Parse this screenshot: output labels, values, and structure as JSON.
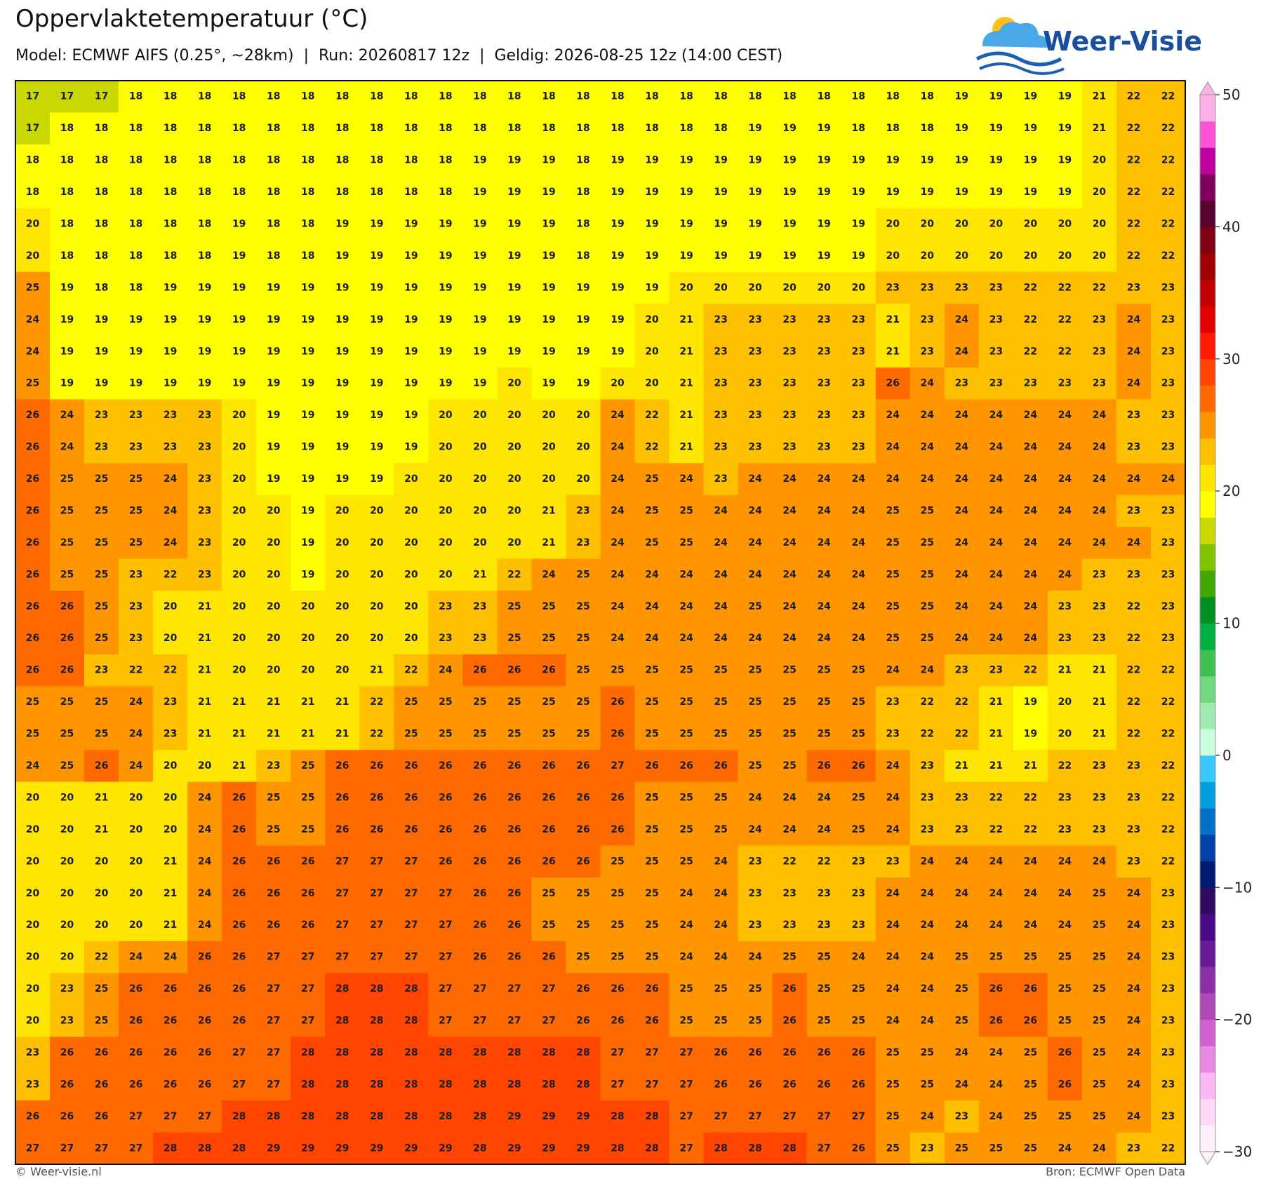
{
  "chart_data": {
    "type": "heatmap",
    "title": "Oppervlaktetemperatuur (°C)",
    "subtitle": "Model: ECMWF AIFS (0.25°, ~28km)  |  Run: 20260817 12z  |  Geldig: 2026-08-25 12z (14:00 CEST)",
    "logo": "Weer-Visie",
    "credit_left": "© Weer-visie.nl",
    "credit_right": "Bron: ECMWF Open Data",
    "values": [
      [
        17,
        17,
        17,
        18,
        18,
        18,
        18,
        18,
        18,
        18,
        18,
        18,
        18,
        18,
        18,
        18,
        18,
        18,
        18,
        18,
        18,
        18,
        18,
        18,
        18,
        18,
        18,
        19,
        19,
        19,
        19,
        21,
        22,
        22
      ],
      [
        17,
        18,
        18,
        18,
        18,
        18,
        18,
        18,
        18,
        18,
        18,
        18,
        18,
        18,
        18,
        18,
        18,
        18,
        18,
        18,
        18,
        19,
        19,
        19,
        18,
        18,
        18,
        19,
        19,
        19,
        19,
        21,
        22,
        22
      ],
      [
        18,
        18,
        18,
        18,
        18,
        18,
        18,
        18,
        18,
        18,
        18,
        18,
        18,
        19,
        19,
        19,
        18,
        19,
        19,
        19,
        19,
        19,
        19,
        19,
        19,
        19,
        19,
        19,
        19,
        19,
        19,
        20,
        22,
        22
      ],
      [
        18,
        18,
        18,
        18,
        18,
        18,
        18,
        18,
        18,
        18,
        18,
        18,
        18,
        19,
        19,
        19,
        18,
        19,
        19,
        19,
        19,
        19,
        19,
        19,
        19,
        19,
        19,
        19,
        19,
        19,
        19,
        20,
        22,
        22
      ],
      [
        20,
        18,
        18,
        18,
        18,
        18,
        19,
        18,
        18,
        19,
        19,
        19,
        19,
        19,
        19,
        19,
        18,
        19,
        19,
        19,
        19,
        19,
        19,
        19,
        19,
        20,
        20,
        20,
        20,
        20,
        20,
        20,
        22,
        22
      ],
      [
        20,
        18,
        18,
        18,
        18,
        18,
        19,
        18,
        18,
        19,
        19,
        19,
        19,
        19,
        19,
        19,
        18,
        19,
        19,
        19,
        19,
        19,
        19,
        19,
        19,
        20,
        20,
        20,
        20,
        20,
        20,
        20,
        22,
        22
      ],
      [
        25,
        19,
        18,
        18,
        19,
        19,
        19,
        19,
        19,
        19,
        19,
        19,
        19,
        19,
        19,
        19,
        19,
        19,
        19,
        20,
        20,
        20,
        20,
        20,
        20,
        23,
        23,
        23,
        23,
        22,
        22,
        22,
        23,
        23
      ],
      [
        24,
        19,
        19,
        19,
        19,
        19,
        19,
        19,
        19,
        19,
        19,
        19,
        19,
        19,
        19,
        19,
        19,
        19,
        20,
        21,
        23,
        23,
        23,
        23,
        23,
        21,
        23,
        24,
        23,
        22,
        22,
        23,
        24,
        23
      ],
      [
        24,
        19,
        19,
        19,
        19,
        19,
        19,
        19,
        19,
        19,
        19,
        19,
        19,
        19,
        19,
        19,
        19,
        19,
        20,
        21,
        23,
        23,
        23,
        23,
        23,
        21,
        23,
        24,
        23,
        22,
        22,
        23,
        24,
        23
      ],
      [
        25,
        19,
        19,
        19,
        19,
        19,
        19,
        19,
        19,
        19,
        19,
        19,
        19,
        19,
        20,
        19,
        19,
        20,
        20,
        21,
        23,
        23,
        23,
        23,
        23,
        26,
        24,
        23,
        23,
        23,
        23,
        23,
        24,
        23
      ],
      [
        26,
        24,
        23,
        23,
        23,
        23,
        20,
        19,
        19,
        19,
        19,
        19,
        20,
        20,
        20,
        20,
        20,
        24,
        22,
        21,
        23,
        23,
        23,
        23,
        23,
        24,
        24,
        24,
        24,
        24,
        24,
        24,
        23,
        23
      ],
      [
        26,
        24,
        23,
        23,
        23,
        23,
        20,
        19,
        19,
        19,
        19,
        19,
        20,
        20,
        20,
        20,
        20,
        24,
        22,
        21,
        23,
        23,
        23,
        23,
        23,
        24,
        24,
        24,
        24,
        24,
        24,
        24,
        23,
        23
      ],
      [
        26,
        25,
        25,
        25,
        24,
        23,
        20,
        19,
        19,
        19,
        19,
        20,
        20,
        20,
        20,
        20,
        20,
        24,
        25,
        24,
        23,
        24,
        24,
        24,
        24,
        24,
        24,
        24,
        24,
        24,
        24,
        24,
        24,
        24
      ],
      [
        26,
        25,
        25,
        25,
        24,
        23,
        20,
        20,
        19,
        20,
        20,
        20,
        20,
        20,
        20,
        21,
        23,
        24,
        25,
        25,
        24,
        24,
        24,
        24,
        24,
        25,
        25,
        24,
        24,
        24,
        24,
        24,
        23,
        23
      ],
      [
        26,
        25,
        25,
        25,
        24,
        23,
        20,
        20,
        19,
        20,
        20,
        20,
        20,
        20,
        20,
        21,
        23,
        24,
        25,
        25,
        24,
        24,
        24,
        24,
        24,
        25,
        25,
        24,
        24,
        24,
        24,
        24,
        24,
        23
      ],
      [
        26,
        25,
        25,
        23,
        22,
        23,
        20,
        20,
        19,
        20,
        20,
        20,
        20,
        21,
        22,
        24,
        25,
        24,
        24,
        24,
        24,
        24,
        24,
        24,
        24,
        25,
        25,
        24,
        24,
        24,
        24,
        23,
        23,
        23
      ],
      [
        26,
        26,
        25,
        23,
        20,
        21,
        20,
        20,
        20,
        20,
        20,
        20,
        23,
        23,
        25,
        25,
        25,
        24,
        24,
        24,
        24,
        25,
        24,
        24,
        24,
        25,
        25,
        24,
        24,
        24,
        23,
        23,
        22,
        23
      ],
      [
        26,
        26,
        25,
        23,
        20,
        21,
        20,
        20,
        20,
        20,
        20,
        20,
        23,
        23,
        25,
        25,
        25,
        24,
        24,
        24,
        24,
        24,
        24,
        24,
        24,
        25,
        25,
        24,
        24,
        24,
        23,
        23,
        22,
        23
      ],
      [
        26,
        26,
        23,
        22,
        22,
        21,
        20,
        20,
        20,
        20,
        21,
        22,
        24,
        26,
        26,
        26,
        25,
        25,
        25,
        25,
        25,
        25,
        25,
        25,
        25,
        24,
        24,
        23,
        23,
        22,
        21,
        21,
        22,
        22
      ],
      [
        25,
        25,
        25,
        24,
        23,
        21,
        21,
        21,
        21,
        21,
        22,
        25,
        25,
        25,
        25,
        25,
        25,
        26,
        25,
        25,
        25,
        25,
        25,
        25,
        25,
        23,
        22,
        22,
        21,
        19,
        20,
        21,
        22,
        22
      ],
      [
        25,
        25,
        25,
        24,
        23,
        21,
        21,
        21,
        21,
        21,
        22,
        25,
        25,
        25,
        25,
        25,
        25,
        26,
        25,
        25,
        25,
        25,
        25,
        25,
        25,
        23,
        22,
        22,
        21,
        19,
        20,
        21,
        22,
        22
      ],
      [
        24,
        25,
        26,
        24,
        20,
        20,
        21,
        23,
        25,
        26,
        26,
        26,
        26,
        26,
        26,
        26,
        26,
        27,
        26,
        26,
        26,
        25,
        25,
        26,
        26,
        24,
        23,
        21,
        21,
        21,
        22,
        23,
        23,
        22
      ],
      [
        20,
        20,
        21,
        20,
        20,
        24,
        26,
        25,
        25,
        26,
        26,
        26,
        26,
        26,
        26,
        26,
        26,
        26,
        25,
        25,
        25,
        24,
        24,
        24,
        25,
        24,
        23,
        23,
        22,
        22,
        23,
        23,
        23,
        22
      ],
      [
        20,
        20,
        21,
        20,
        20,
        24,
        26,
        25,
        25,
        26,
        26,
        26,
        26,
        26,
        26,
        26,
        26,
        26,
        25,
        25,
        25,
        24,
        24,
        24,
        25,
        24,
        23,
        23,
        22,
        22,
        23,
        23,
        23,
        22
      ],
      [
        20,
        20,
        20,
        20,
        21,
        24,
        26,
        26,
        26,
        27,
        27,
        27,
        26,
        26,
        26,
        26,
        26,
        25,
        25,
        25,
        24,
        23,
        22,
        22,
        23,
        23,
        24,
        24,
        24,
        24,
        24,
        24,
        23,
        22
      ],
      [
        20,
        20,
        20,
        20,
        21,
        24,
        26,
        26,
        26,
        27,
        27,
        27,
        27,
        26,
        26,
        25,
        25,
        25,
        25,
        24,
        24,
        23,
        23,
        23,
        23,
        24,
        24,
        24,
        24,
        24,
        24,
        25,
        24,
        23
      ],
      [
        20,
        20,
        20,
        20,
        21,
        24,
        26,
        26,
        26,
        27,
        27,
        27,
        27,
        26,
        26,
        25,
        25,
        25,
        25,
        24,
        24,
        23,
        23,
        23,
        23,
        24,
        24,
        24,
        24,
        24,
        24,
        25,
        24,
        23
      ],
      [
        20,
        20,
        22,
        24,
        24,
        26,
        26,
        27,
        27,
        27,
        27,
        27,
        27,
        26,
        26,
        26,
        25,
        25,
        25,
        24,
        24,
        24,
        25,
        25,
        24,
        24,
        24,
        25,
        25,
        25,
        25,
        25,
        24,
        23
      ],
      [
        20,
        23,
        25,
        26,
        26,
        26,
        26,
        27,
        27,
        28,
        28,
        28,
        27,
        27,
        27,
        27,
        26,
        26,
        26,
        25,
        25,
        25,
        26,
        25,
        25,
        24,
        24,
        25,
        26,
        26,
        25,
        25,
        24,
        23
      ],
      [
        20,
        23,
        25,
        26,
        26,
        26,
        26,
        27,
        27,
        28,
        28,
        28,
        27,
        27,
        27,
        27,
        26,
        26,
        26,
        25,
        25,
        25,
        26,
        25,
        25,
        24,
        24,
        25,
        26,
        26,
        25,
        25,
        24,
        23
      ],
      [
        23,
        26,
        26,
        26,
        26,
        26,
        27,
        27,
        28,
        28,
        28,
        28,
        28,
        28,
        28,
        28,
        28,
        27,
        27,
        27,
        26,
        26,
        26,
        26,
        26,
        25,
        25,
        24,
        24,
        25,
        26,
        25,
        24,
        23
      ],
      [
        23,
        26,
        26,
        26,
        26,
        26,
        27,
        27,
        28,
        28,
        28,
        28,
        28,
        28,
        28,
        28,
        28,
        27,
        27,
        27,
        26,
        26,
        26,
        26,
        26,
        25,
        25,
        24,
        24,
        25,
        26,
        25,
        24,
        23
      ],
      [
        26,
        26,
        26,
        27,
        27,
        27,
        28,
        28,
        28,
        28,
        28,
        28,
        28,
        28,
        29,
        29,
        29,
        28,
        28,
        27,
        27,
        27,
        27,
        27,
        27,
        25,
        24,
        23,
        24,
        25,
        25,
        25,
        24,
        23
      ],
      [
        27,
        27,
        27,
        27,
        28,
        28,
        28,
        29,
        29,
        29,
        29,
        29,
        29,
        28,
        29,
        29,
        29,
        28,
        28,
        27,
        28,
        28,
        28,
        27,
        26,
        25,
        23,
        25,
        25,
        25,
        24,
        24,
        23,
        22
      ]
    ],
    "colorbar": {
      "lim": [
        -30,
        50
      ],
      "ticks": [
        {
          "value": -30,
          "label": "−30"
        },
        {
          "value": -20,
          "label": "−20"
        },
        {
          "value": -10,
          "label": "−10"
        },
        0,
        10,
        20,
        30,
        40,
        50
      ],
      "colors": [
        "#fff0fc",
        "#ffd8f8",
        "#fcb8f2",
        "#e888e4",
        "#d060d0",
        "#b048b8",
        "#8c30a8",
        "#6a1a98",
        "#4a0a88",
        "#300a60",
        "#001a6e",
        "#0040a8",
        "#0070c8",
        "#00a0e0",
        "#35c8f8",
        "#ccffe0",
        "#a0ecb0",
        "#70d880",
        "#40c050",
        "#00b040",
        "#009020",
        "#40a800",
        "#80c400",
        "#c8d800",
        "#ffff00",
        "#ffe600",
        "#ffc000",
        "#ff9600",
        "#ff6a00",
        "#ff4500",
        "#ff1a00",
        "#e00000",
        "#c00000",
        "#a00000",
        "#800010",
        "#580030",
        "#800060",
        "#c000a0",
        "#ff50d8",
        "#ffb0e8"
      ]
    }
  }
}
